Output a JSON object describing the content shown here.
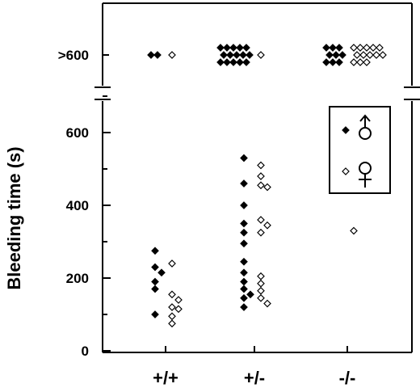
{
  "chart_data": {
    "type": "scatter",
    "ylabel": "Bleeding time (s)",
    "categories": [
      "+/+",
      "+/-",
      "-/-"
    ],
    "ylim": [
      0,
      700
    ],
    "yticks": [
      0,
      200,
      400,
      600
    ],
    "axis_break": true,
    "break_label": ">600",
    "grid": false,
    "legend": {
      "placement": "top-right",
      "entries": [
        {
          "marker": "filled-diamond",
          "symbol": "male"
        },
        {
          "marker": "open-diamond",
          "symbol": "female"
        }
      ]
    },
    "series": [
      {
        "marker": "filled-diamond",
        "symbol": "male",
        "values": {
          "+/+": [
            275,
            230,
            215,
            190,
            170,
            100
          ],
          "+/-": [
            530,
            460,
            400,
            350,
            325,
            295,
            245,
            215,
            190,
            170,
            155,
            145,
            120
          ],
          "-/-": []
        },
        "over_600_counts": {
          "+/+": 2,
          "+/-": 15,
          "-/-": 9
        }
      },
      {
        "marker": "open-diamond",
        "symbol": "female",
        "values": {
          "+/+": [
            240,
            155,
            140,
            120,
            115,
            95,
            75
          ],
          "+/-": [
            510,
            480,
            455,
            450,
            360,
            345,
            325,
            205,
            185,
            165,
            145,
            130
          ],
          "-/-": [
            330
          ]
        },
        "over_600_counts": {
          "+/+": 1,
          "+/-": 1,
          "-/-": 13
        }
      }
    ]
  }
}
